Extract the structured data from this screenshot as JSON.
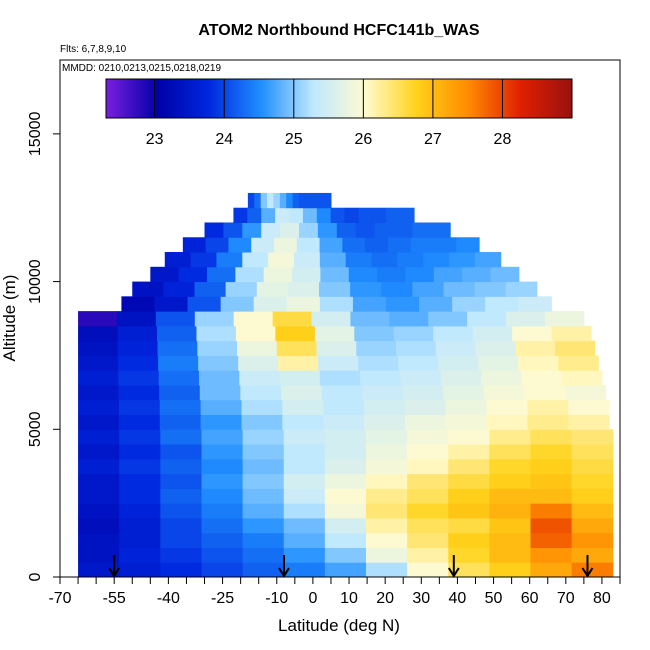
{
  "chart_data": {
    "type": "heatmap",
    "title": "ATOM2 Northbound HCFC141b_WAS",
    "flights_label": "Flts: 6,7,8,9,10",
    "dates_label": "MMDD: 0210,0213,0215,0218,0219",
    "xlabel": "Latitude (deg N)",
    "ylabel": "Altitude (m)",
    "xlim": [
      -70,
      85
    ],
    "ylim": [
      0,
      17500
    ],
    "x_ticks": [
      -70,
      -55,
      -40,
      -25,
      -10,
      0,
      10,
      20,
      30,
      40,
      50,
      60,
      70,
      80
    ],
    "x_minor_ticks": [
      -65,
      -60,
      -50,
      -45,
      -35,
      -30,
      -20,
      -15,
      -5,
      5,
      15,
      25,
      35,
      45,
      55,
      65,
      75,
      85
    ],
    "y_ticks": [
      0,
      5000,
      10000,
      15000
    ],
    "colorbar": {
      "min": 22.3,
      "max": 29.0,
      "ticks": [
        23,
        24,
        25,
        26,
        27,
        28
      ],
      "colors": [
        "#7a1fe0",
        "#0000a8",
        "#0028e0",
        "#1f8fff",
        "#bfe8ff",
        "#fffbd0",
        "#ffd21a",
        "#ff8a00",
        "#e02000",
        "#9a1010"
      ]
    },
    "profile_markers_lat": [
      -55,
      -8,
      39,
      76
    ],
    "altitude_bins": [
      {
        "alt": 0,
        "lat_min": -65,
        "lat_max": 83,
        "values": [
          23.5,
          23.6,
          23.8,
          24.0,
          24.2,
          24.4,
          24.7,
          25.2,
          26.0,
          26.5,
          26.8,
          27.2,
          27.6
        ]
      },
      {
        "alt": 500,
        "lat_min": -65,
        "lat_max": 83,
        "values": [
          23.4,
          23.7,
          23.9,
          24.1,
          24.3,
          24.6,
          25.0,
          25.8,
          26.2,
          26.7,
          27.0,
          27.4,
          27.2
        ]
      },
      {
        "alt": 1000,
        "lat_min": -65,
        "lat_max": 83,
        "values": [
          23.4,
          23.6,
          24.0,
          24.2,
          24.4,
          24.8,
          25.3,
          26.0,
          26.4,
          26.8,
          27.0,
          27.8,
          27.4
        ]
      },
      {
        "alt": 1500,
        "lat_min": -65,
        "lat_max": 83,
        "values": [
          23.3,
          23.6,
          24.0,
          24.3,
          24.6,
          24.9,
          25.5,
          26.2,
          26.5,
          26.6,
          26.9,
          27.9,
          27.2
        ]
      },
      {
        "alt": 2000,
        "lat_min": -65,
        "lat_max": 83,
        "values": [
          23.4,
          23.7,
          24.1,
          24.4,
          24.8,
          25.2,
          25.9,
          26.4,
          26.7,
          26.9,
          27.1,
          27.6,
          27.0
        ]
      },
      {
        "alt": 2500,
        "lat_min": -65,
        "lat_max": 83,
        "values": [
          23.5,
          23.8,
          24.2,
          24.5,
          24.9,
          25.4,
          26.0,
          26.3,
          26.5,
          26.8,
          27.0,
          27.0,
          26.8
        ]
      },
      {
        "alt": 3000,
        "lat_min": -65,
        "lat_max": 83,
        "values": [
          23.5,
          23.8,
          24.1,
          24.6,
          25.0,
          25.5,
          25.8,
          26.1,
          26.4,
          26.6,
          26.8,
          26.9,
          26.7
        ]
      },
      {
        "alt": 3500,
        "lat_min": -65,
        "lat_max": 83,
        "values": [
          23.6,
          23.9,
          24.2,
          24.5,
          24.9,
          25.3,
          25.6,
          25.9,
          26.1,
          26.4,
          26.7,
          26.8,
          26.6
        ]
      },
      {
        "alt": 4000,
        "lat_min": -65,
        "lat_max": 83,
        "values": [
          23.5,
          23.8,
          24.1,
          24.6,
          25.0,
          25.3,
          25.5,
          25.8,
          26.0,
          26.2,
          26.5,
          26.7,
          26.5
        ]
      },
      {
        "alt": 4500,
        "lat_min": -65,
        "lat_max": 83,
        "values": [
          23.6,
          23.9,
          24.3,
          24.7,
          25.1,
          25.4,
          25.5,
          25.7,
          25.9,
          26.0,
          26.3,
          26.5,
          26.4
        ]
      },
      {
        "alt": 5000,
        "lat_min": -65,
        "lat_max": 82,
        "values": [
          23.5,
          23.8,
          24.2,
          24.6,
          25.0,
          25.3,
          25.4,
          25.6,
          25.8,
          25.9,
          26.1,
          26.3,
          26.2
        ]
      },
      {
        "alt": 5500,
        "lat_min": -65,
        "lat_max": 82,
        "values": [
          23.6,
          23.9,
          24.3,
          24.8,
          25.2,
          25.5,
          25.3,
          25.5,
          25.6,
          25.8,
          26.0,
          26.2,
          26.0
        ]
      },
      {
        "alt": 6000,
        "lat_min": -65,
        "lat_max": 81,
        "values": [
          23.5,
          23.8,
          24.2,
          24.9,
          25.3,
          25.6,
          25.3,
          25.4,
          25.5,
          25.7,
          25.9,
          26.0,
          25.9
        ]
      },
      {
        "alt": 6500,
        "lat_min": -65,
        "lat_max": 80,
        "values": [
          23.6,
          23.9,
          24.3,
          24.9,
          25.4,
          25.5,
          25.2,
          25.3,
          25.4,
          25.6,
          25.8,
          26.0,
          26.1
        ]
      },
      {
        "alt": 7000,
        "lat_min": -65,
        "lat_max": 79,
        "values": [
          23.5,
          23.8,
          24.4,
          25.0,
          25.6,
          26.2,
          25.4,
          25.2,
          25.3,
          25.5,
          25.7,
          26.1,
          26.3
        ]
      },
      {
        "alt": 7500,
        "lat_min": -65,
        "lat_max": 78,
        "values": [
          23.4,
          23.7,
          24.3,
          25.1,
          25.8,
          26.5,
          25.6,
          25.1,
          25.2,
          25.4,
          25.6,
          26.2,
          26.4
        ]
      },
      {
        "alt": 8000,
        "lat_min": -65,
        "lat_max": 77,
        "values": [
          23.3,
          23.6,
          24.2,
          25.2,
          26.0,
          26.8,
          25.7,
          25.0,
          25.1,
          25.3,
          25.5,
          26.0,
          26.2
        ]
      },
      {
        "alt": 8500,
        "lat_min": -65,
        "lat_max": 75,
        "values": [
          22.8,
          23.4,
          24.1,
          25.1,
          26.0,
          26.6,
          25.5,
          24.9,
          24.8,
          25.0,
          25.3,
          25.6,
          25.8
        ]
      },
      {
        "alt": 9000,
        "lat_min": -53,
        "lat_max": 66,
        "values": [
          23.2,
          23.5,
          24.1,
          25.0,
          25.6,
          25.8,
          25.2,
          24.7,
          24.6,
          24.8,
          25.1,
          25.3,
          25.4
        ]
      },
      {
        "alt": 9500,
        "lat_min": -50,
        "lat_max": 62,
        "values": [
          23.4,
          23.7,
          24.2,
          25.1,
          25.7,
          25.6,
          25.0,
          24.6,
          24.5,
          24.7,
          24.9,
          25.0,
          25.1
        ]
      },
      {
        "alt": 10000,
        "lat_min": -45,
        "lat_max": 57,
        "values": [
          23.5,
          23.8,
          24.3,
          25.2,
          25.8,
          25.5,
          24.9,
          24.5,
          24.4,
          24.5,
          24.7,
          24.8,
          24.9
        ]
      },
      {
        "alt": 10500,
        "lat_min": -41,
        "lat_max": 52,
        "values": [
          23.6,
          23.9,
          24.4,
          25.3,
          25.9,
          25.4,
          24.8,
          24.4,
          24.3,
          24.4,
          24.5,
          24.6,
          24.7
        ]
      },
      {
        "alt": 11000,
        "lat_min": -36,
        "lat_max": 46,
        "values": [
          23.7,
          24.0,
          24.5,
          25.4,
          25.8,
          25.3,
          24.7,
          24.3,
          24.2,
          24.3,
          24.4,
          24.4,
          24.5
        ]
      },
      {
        "alt": 11500,
        "lat_min": -30,
        "lat_max": 38,
        "values": [
          23.8,
          24.1,
          24.6,
          25.4,
          25.6,
          25.1,
          24.6,
          24.2,
          24.1,
          24.2,
          24.2,
          24.3,
          24.3
        ]
      },
      {
        "alt": 12000,
        "lat_min": -22,
        "lat_max": 28,
        "values": [
          23.9,
          24.2,
          24.8,
          25.4,
          25.3,
          24.9,
          24.5,
          24.1,
          24.0,
          24.1,
          24.1,
          24.2,
          24.2
        ]
      },
      {
        "alt": 12500,
        "lat_min": -18,
        "lat_max": 5,
        "values": [
          24.0,
          24.3,
          25.0,
          25.3,
          25.1,
          24.8,
          24.5,
          24.2,
          24.1,
          24.1,
          24.1,
          24.1,
          24.1
        ]
      }
    ]
  }
}
